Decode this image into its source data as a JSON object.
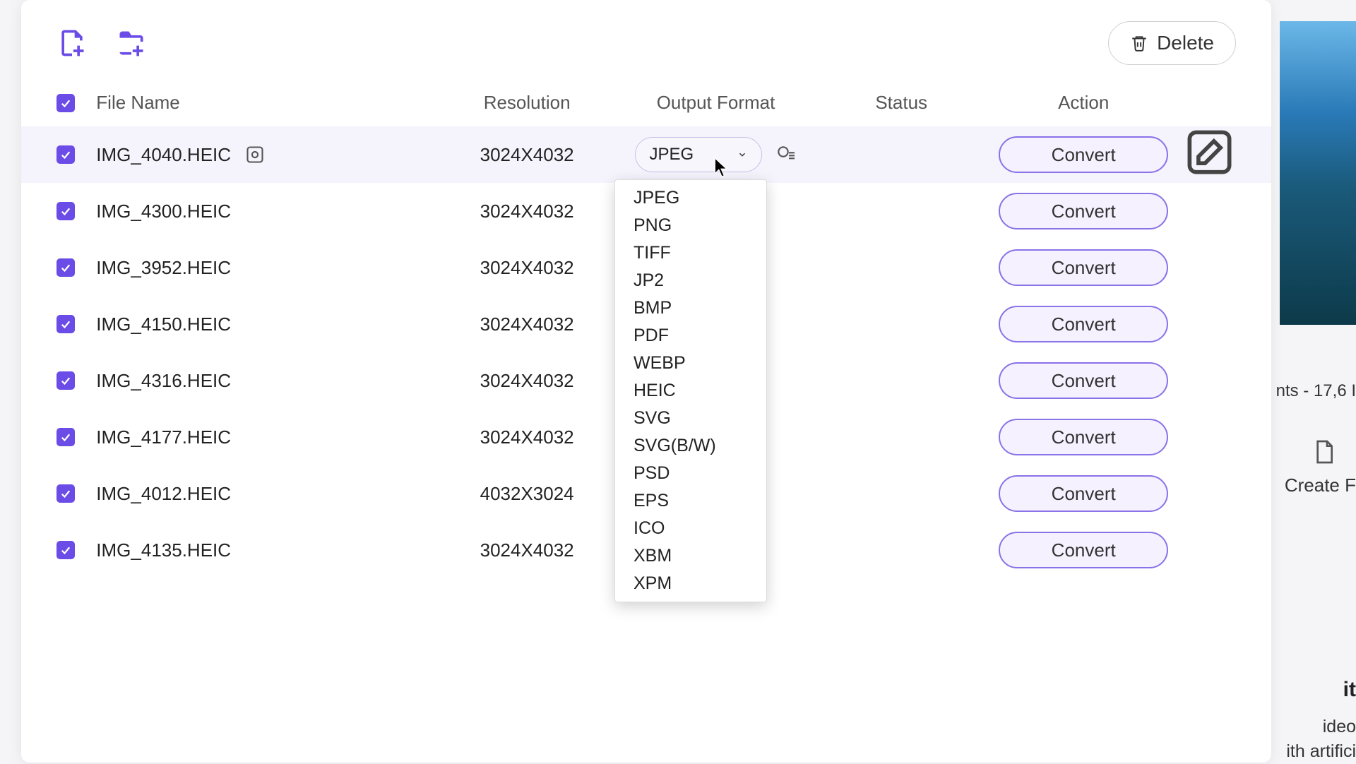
{
  "toolbar": {
    "delete_label": "Delete"
  },
  "columns": {
    "filename": "File Name",
    "resolution": "Resolution",
    "format": "Output Format",
    "status": "Status",
    "action": "Action"
  },
  "selected_format": "JPEG",
  "convert_label": "Convert",
  "format_options": [
    "JPEG",
    "PNG",
    "TIFF",
    "JP2",
    "BMP",
    "PDF",
    "WEBP",
    "HEIC",
    "SVG",
    "SVG(B/W)",
    "PSD",
    "EPS",
    "ICO",
    "XBM",
    "XPM"
  ],
  "files": [
    {
      "name": "IMG_4040.HEIC",
      "resolution": "3024X4032",
      "active": true
    },
    {
      "name": "IMG_4300.HEIC",
      "resolution": "3024X4032",
      "active": false
    },
    {
      "name": "IMG_3952.HEIC",
      "resolution": "3024X4032",
      "active": false
    },
    {
      "name": "IMG_4150.HEIC",
      "resolution": "3024X4032",
      "active": false
    },
    {
      "name": "IMG_4316.HEIC",
      "resolution": "3024X4032",
      "active": false
    },
    {
      "name": "IMG_4177.HEIC",
      "resolution": "3024X4032",
      "active": false
    },
    {
      "name": "IMG_4012.HEIC",
      "resolution": "4032X3024",
      "active": false
    },
    {
      "name": "IMG_4135.HEIC",
      "resolution": "3024X4032",
      "active": false
    }
  ],
  "side": {
    "meta": "nts - 17,6 I",
    "create": "Create F",
    "heading": "it",
    "line1": "ideo",
    "line2": "ith artifici"
  },
  "colors": {
    "accent": "#6b4ce6",
    "convert_border": "#8a72e8",
    "convert_bg": "#f5f1ff"
  }
}
